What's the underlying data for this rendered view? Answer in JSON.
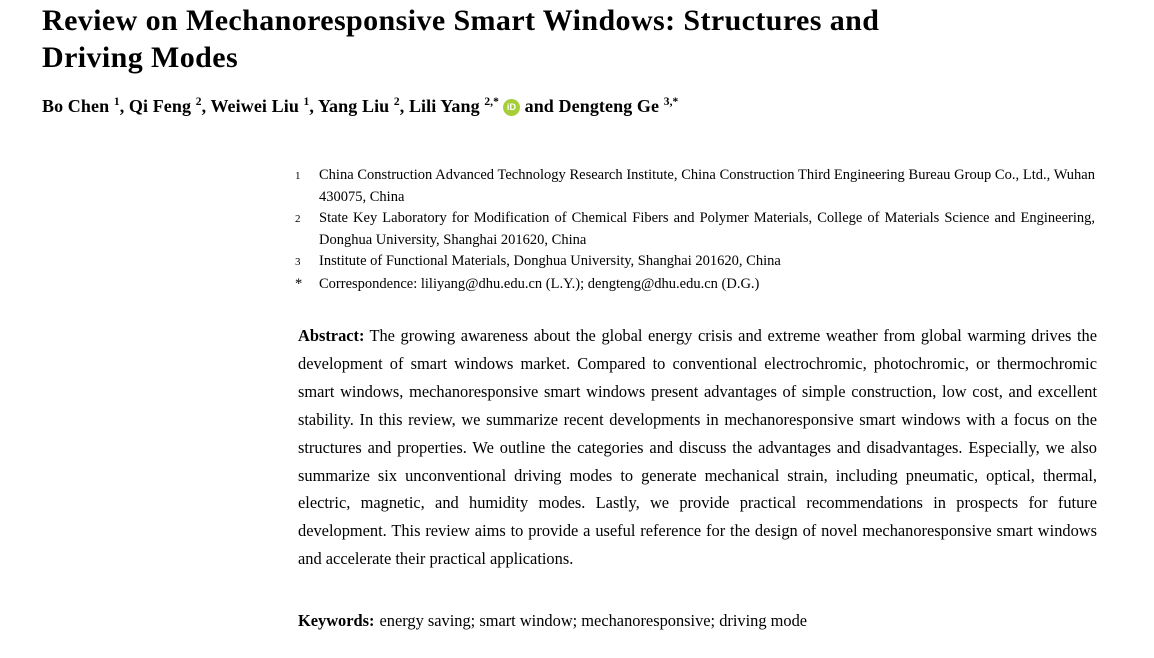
{
  "article": {
    "title_lines": [
      "Review on Mechanoresponsive Smart Windows: Structures and",
      "Driving Modes"
    ]
  },
  "authors": [
    {
      "name": "Bo Chen",
      "sup": "1",
      "orcid": false,
      "sep": ", "
    },
    {
      "name": "Qi Feng",
      "sup": "2",
      "orcid": false,
      "sep": ", "
    },
    {
      "name": "Weiwei Liu",
      "sup": "1",
      "orcid": false,
      "sep": ", "
    },
    {
      "name": "Yang Liu",
      "sup": "2",
      "orcid": false,
      "sep": ", "
    },
    {
      "name": "Lili Yang",
      "sup": "2,*",
      "orcid": true,
      "sep": " and "
    },
    {
      "name": "Dengteng Ge",
      "sup": "3,*",
      "orcid": false,
      "sep": ""
    }
  ],
  "orcid_icon": {
    "label": "iD",
    "color": "#A6CE39"
  },
  "affiliations": [
    {
      "marker": "1",
      "text": "China Construction Advanced Technology Research Institute, China Construction Third Engineering Bureau Group Co., Ltd., Wuhan 430075, China"
    },
    {
      "marker": "2",
      "text": "State Key Laboratory for Modification of Chemical Fibers and Polymer Materials, College of Materials Science and Engineering, Donghua University, Shanghai 201620, China"
    },
    {
      "marker": "3",
      "text": "Institute of Functional Materials, Donghua University, Shanghai 201620, China"
    },
    {
      "marker": "*",
      "text": "Correspondence: liliyang@dhu.edu.cn (L.Y.); dengteng@dhu.edu.cn (D.G.)"
    }
  ],
  "abstract": {
    "label": "Abstract:",
    "text": "The growing awareness about the global energy crisis and extreme weather from global warming drives the development of smart windows market. Compared to conventional electrochromic, photochromic, or thermochromic smart windows, mechanoresponsive smart windows present advantages of simple construction, low cost, and excellent stability. In this review, we summarize recent developments in mechanoresponsive smart windows with a focus on the structures and properties. We outline the categories and discuss the advantages and disadvantages. Especially, we also summarize six unconventional driving modes to generate mechanical strain, including pneumatic, optical, thermal, electric, magnetic, and humidity modes. Lastly, we provide practical recommendations in prospects for future development. This review aims to provide a useful reference for the design of novel mechanoresponsive smart windows and accelerate their practical applications."
  },
  "keywords": {
    "label": "Keywords:",
    "text": "energy saving; smart window; mechanoresponsive; driving mode"
  }
}
